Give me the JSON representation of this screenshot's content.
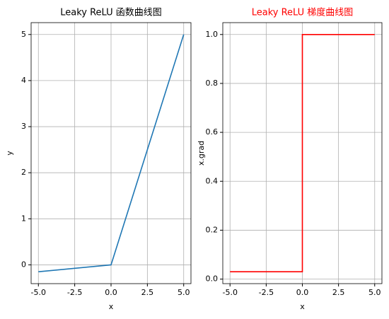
{
  "chart_data": [
    {
      "type": "line",
      "title": "Leaky ReLU 函数曲线图",
      "title_color": "#000000",
      "x_label": "x",
      "y_label": "y",
      "x": [
        -5,
        0,
        5
      ],
      "series": [
        {
          "color": "#1f77b4",
          "values": [
            -0.15,
            0,
            5
          ]
        }
      ],
      "xlim": [
        -5.5,
        5.5
      ],
      "xticks": [
        {
          "value": -5,
          "label": "-5.0"
        },
        -2.5,
        {
          "value": 0,
          "label": "0.0"
        },
        2.5,
        {
          "value": 5,
          "label": "5.0"
        }
      ],
      "ylim": [
        -0.4075,
        5.2575
      ],
      "yticks": [
        0,
        1,
        2,
        3,
        4,
        5
      ],
      "grid": true
    },
    {
      "type": "line",
      "title": "Leaky ReLU 梯度曲线图",
      "title_color": "#ff0000",
      "x_label": "x",
      "y_label": "x.grad",
      "x": [
        -5,
        0,
        0,
        5
      ],
      "series": [
        {
          "color": "#ff0000",
          "values": [
            0.03,
            0.03,
            1,
            1
          ]
        }
      ],
      "xlim": [
        -5.5,
        5.5
      ],
      "xticks": [
        {
          "value": -5,
          "label": "-5.0"
        },
        -2.5,
        {
          "value": 0,
          "label": "0.0"
        },
        2.5,
        {
          "value": 5,
          "label": "5.0"
        }
      ],
      "ylim": [
        -0.0185,
        1.0485
      ],
      "yticks": [
        {
          "value": 0,
          "label": "0.0"
        },
        0.2,
        0.4,
        0.6,
        0.8,
        {
          "value": 1,
          "label": "1.0"
        }
      ],
      "grid": true
    }
  ]
}
